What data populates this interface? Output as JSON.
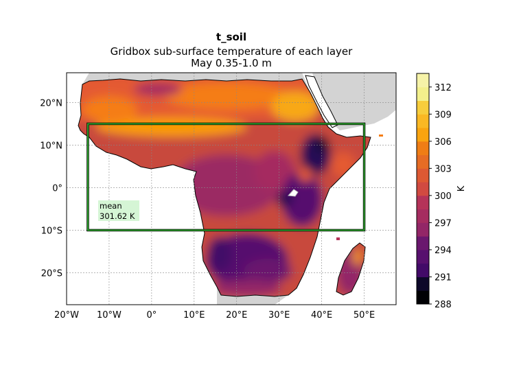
{
  "title": "t_soil",
  "subtitle_lines": [
    "Gridbox sub-surface temperature of each layer",
    "May  0.35-1.0 m"
  ],
  "map": {
    "lon_ticks": [
      "20°W",
      "10°W",
      "0°",
      "10°E",
      "20°E",
      "30°E",
      "40°E",
      "50°E"
    ],
    "lat_ticks": [
      "20°N",
      "10°N",
      "0°",
      "10°S",
      "20°S"
    ],
    "extent": {
      "lon": [
        -20,
        57.5
      ],
      "lat": [
        -27.5,
        27
      ]
    },
    "gridlines": true,
    "region_box": {
      "lon": [
        -15,
        50
      ],
      "lat": [
        -10,
        15
      ],
      "color": "#2ca02c"
    },
    "stat_label": {
      "name": "mean",
      "value": "301.62 K",
      "background": "#d5f5d5"
    },
    "colormap": "inferno",
    "land_mask_color": "#d3d3d3"
  },
  "colorbar": {
    "label": "K",
    "ticks": [
      "312",
      "309",
      "306",
      "303",
      "300",
      "297",
      "294",
      "291",
      "288"
    ],
    "min": 288,
    "max": 313.5,
    "step": 1.5
  }
}
